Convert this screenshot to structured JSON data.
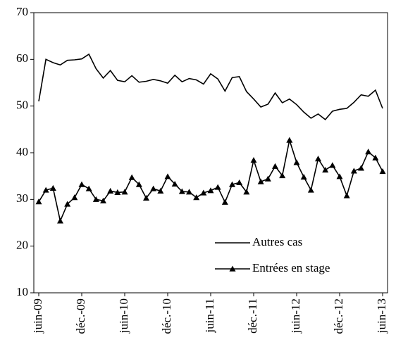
{
  "chart_data": {
    "type": "line",
    "categories": [
      "juin-09",
      null,
      null,
      null,
      null,
      null,
      "déc.-09",
      null,
      null,
      null,
      null,
      null,
      "juin-10",
      null,
      null,
      null,
      null,
      null,
      "déc.-10",
      null,
      null,
      null,
      null,
      null,
      "juin-11",
      null,
      null,
      null,
      null,
      null,
      "déc.-11",
      null,
      null,
      null,
      null,
      null,
      "juin-12",
      null,
      null,
      null,
      null,
      null,
      "déc.-12",
      null,
      null,
      null,
      null,
      null,
      "juin-13"
    ],
    "series": [
      {
        "name": "Autres cas",
        "color": "#000000",
        "marker": "none",
        "values": [
          51,
          60,
          59.3,
          58.8,
          59.8,
          59.9,
          60.1,
          61.1,
          58,
          56,
          57.6,
          55.5,
          55.2,
          56.5,
          55.1,
          55.3,
          55.7,
          55.4,
          54.9,
          56.6,
          55.2,
          55.9,
          55.6,
          54.7,
          56.9,
          55.8,
          53.2,
          56.1,
          56.3,
          53.1,
          51.5,
          49.8,
          50.4,
          52.8,
          50.7,
          51.5,
          50.3,
          48.7,
          47.4,
          48.3,
          47.1,
          48.9,
          49.3,
          49.5,
          50.8,
          52.4,
          52.1,
          53.4,
          49.5
        ]
      },
      {
        "name": "Entrées en stage",
        "color": "#000000",
        "marker": "triangle",
        "values": [
          29.5,
          32,
          32.4,
          25.4,
          29,
          30.4,
          33.2,
          32.3,
          30,
          29.7,
          31.8,
          31.5,
          31.6,
          34.7,
          33.2,
          30.3,
          32.3,
          31.8,
          34.9,
          33.3,
          31.7,
          31.6,
          30.4,
          31.4,
          31.9,
          32.6,
          29.4,
          33.2,
          33.6,
          31.6,
          38.4,
          33.8,
          34.4,
          37.1,
          35.1,
          42.7,
          37.9,
          34.8,
          32,
          38.7,
          36.3,
          37.3,
          34.9,
          30.8,
          36.1,
          36.7,
          40.2,
          38.9,
          36
        ]
      }
    ],
    "ylim": [
      10,
      70
    ],
    "yticks": [
      10,
      20,
      30,
      40,
      50,
      60,
      70
    ],
    "grid": false,
    "legend_position": "lower right"
  }
}
